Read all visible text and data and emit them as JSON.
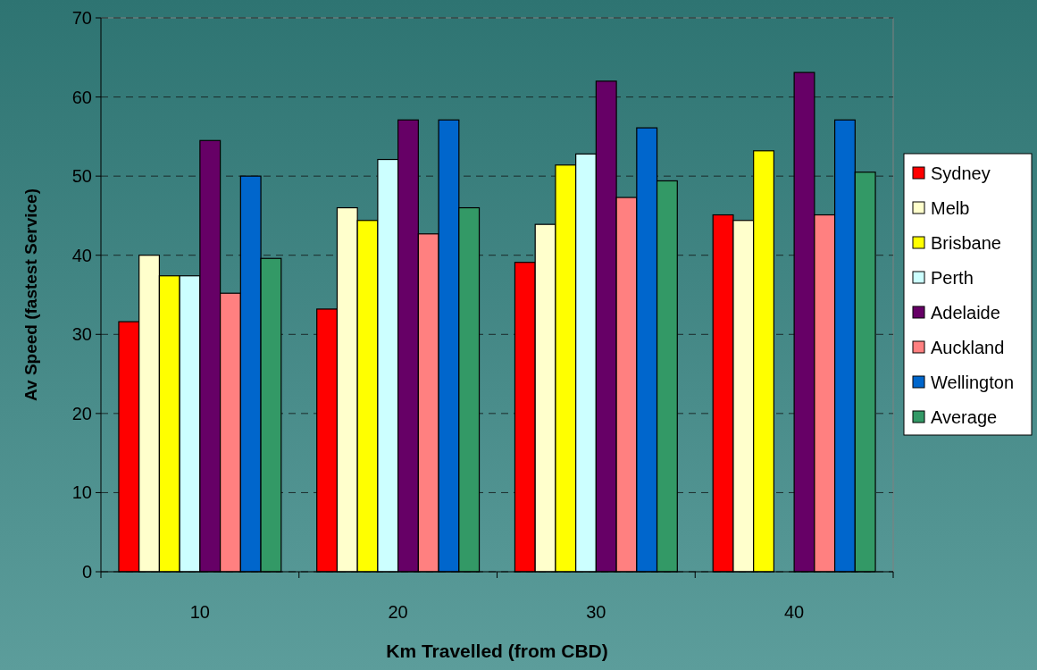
{
  "chart_data": {
    "type": "bar",
    "xlabel": "Km Travelled (from CBD)",
    "ylabel": "Av Speed (fastest Service)",
    "categories": [
      "10",
      "20",
      "30",
      "40"
    ],
    "series": [
      {
        "name": "Sydney",
        "color": "#ff0000",
        "values": [
          31.6,
          33.2,
          39.1,
          45.1
        ]
      },
      {
        "name": "Melb",
        "color": "#ffffcc",
        "values": [
          40,
          46,
          43.9,
          44.4
        ]
      },
      {
        "name": "Brisbane",
        "color": "#ffff00",
        "values": [
          37.4,
          44.4,
          51.4,
          53.2
        ]
      },
      {
        "name": "Perth",
        "color": "#ccffff",
        "values": [
          37.4,
          52.1,
          52.8,
          null
        ]
      },
      {
        "name": "Adelaide",
        "color": "#660066",
        "values": [
          54.5,
          57.1,
          62,
          63.1
        ]
      },
      {
        "name": "Auckland",
        "color": "#ff8080",
        "values": [
          35.2,
          42.7,
          47.3,
          45.1
        ]
      },
      {
        "name": "Wellington",
        "color": "#0066cc",
        "values": [
          50,
          57.1,
          56.1,
          57.1
        ]
      },
      {
        "name": "Average",
        "color": "#339966",
        "values": [
          39.6,
          46,
          49.4,
          50.5
        ]
      }
    ],
    "ylim": [
      0,
      70
    ],
    "yticks": [
      0,
      10,
      20,
      30,
      40,
      50,
      60,
      70
    ],
    "grid": "y",
    "legend": "right"
  }
}
